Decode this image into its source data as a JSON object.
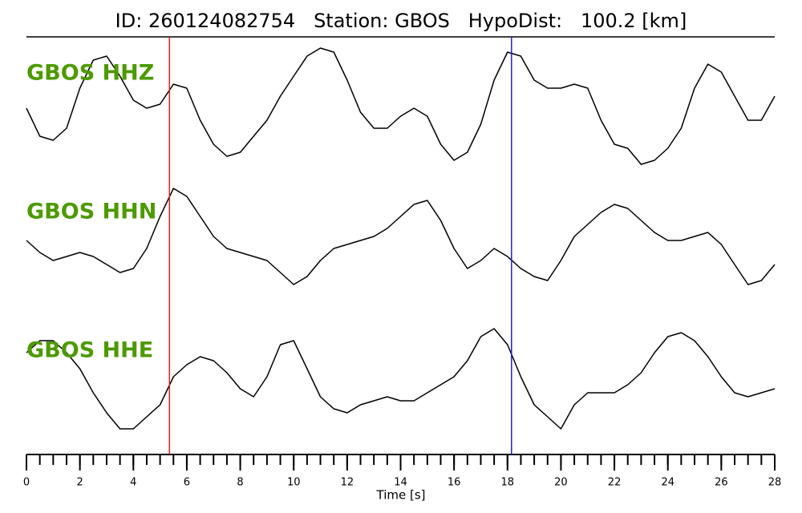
{
  "chart_data": {
    "type": "line",
    "title": "ID: 260124082754   Station: GBOS   HypoDist:   100.2 [km]",
    "xlabel": "Time [s]",
    "xlim": [
      0,
      28
    ],
    "xticks": [
      0,
      2,
      4,
      6,
      8,
      10,
      12,
      14,
      16,
      18,
      20,
      22,
      24,
      26,
      28
    ],
    "xminorticks": [
      0,
      0.5,
      1,
      1.5,
      2,
      2.5,
      3,
      3.5,
      4,
      4.5,
      5,
      5.5,
      6,
      6.5,
      7,
      7.5,
      8,
      8.5,
      9,
      9.5,
      10,
      10.5,
      11,
      11.5,
      12,
      12.5,
      13,
      13.5,
      14,
      14.5,
      15,
      15.5,
      16,
      16.5,
      17,
      17.5,
      18,
      18.5,
      19,
      19.5,
      20,
      20.5,
      21,
      21.5,
      22,
      22.5,
      23,
      23.5,
      24,
      24.5,
      25,
      25.5,
      26,
      26.5,
      27,
      27.5,
      28
    ],
    "label_color": "#4c9a00",
    "markers": [
      {
        "value": 5.35,
        "color": "#e02020"
      },
      {
        "value": 18.15,
        "color": "#2020e0"
      }
    ],
    "x": [
      0,
      0.5,
      1,
      1.5,
      2,
      2.5,
      3,
      3.5,
      4,
      4.5,
      5,
      5.5,
      6,
      6.5,
      7,
      7.5,
      8,
      8.5,
      9,
      9.5,
      10,
      10.5,
      11,
      11.5,
      12,
      12.5,
      13,
      13.5,
      14,
      14.5,
      15,
      15.5,
      16,
      16.5,
      17,
      17.5,
      18,
      18.5,
      19,
      19.5,
      20,
      20.5,
      21,
      21.5,
      22,
      22.5,
      23,
      23.5,
      24,
      24.5,
      25,
      25.5,
      26,
      26.5,
      27,
      27.5,
      28
    ],
    "series": [
      {
        "name": "GBOS HHZ",
        "color": "#000000",
        "ylim": [
          -80,
          80
        ],
        "values": [
          0,
          -35,
          -40,
          -25,
          25,
          60,
          65,
          40,
          10,
          0,
          5,
          30,
          25,
          -15,
          -45,
          -60,
          -55,
          -35,
          -15,
          15,
          40,
          65,
          75,
          70,
          35,
          -5,
          -25,
          -25,
          -10,
          0,
          -10,
          -45,
          -65,
          -55,
          -20,
          35,
          70,
          65,
          35,
          25,
          25,
          30,
          25,
          -15,
          -45,
          -50,
          -70,
          -65,
          -50,
          -25,
          25,
          55,
          45,
          15,
          -15,
          -15,
          15
        ]
      },
      {
        "name": "GBOS HHN",
        "color": "#000000",
        "ylim": [
          -80,
          80
        ],
        "values": [
          -5,
          -20,
          -30,
          -25,
          -20,
          -25,
          -35,
          -45,
          -40,
          -15,
          25,
          60,
          50,
          25,
          0,
          -15,
          -20,
          -25,
          -30,
          -45,
          -60,
          -50,
          -30,
          -15,
          -10,
          -5,
          0,
          10,
          25,
          40,
          45,
          20,
          -15,
          -40,
          -30,
          -15,
          -25,
          -40,
          -50,
          -55,
          -30,
          0,
          15,
          30,
          40,
          35,
          20,
          5,
          -5,
          -5,
          0,
          5,
          -10,
          -35,
          -60,
          -55,
          -35
        ]
      },
      {
        "name": "GBOS HHE",
        "color": "#000000",
        "ylim": [
          -80,
          80
        ],
        "values": [
          40,
          55,
          55,
          40,
          20,
          -10,
          -35,
          -55,
          -55,
          -40,
          -25,
          10,
          25,
          35,
          30,
          15,
          -5,
          -15,
          10,
          50,
          55,
          20,
          -15,
          -30,
          -35,
          -25,
          -20,
          -15,
          -20,
          -20,
          -10,
          0,
          10,
          30,
          60,
          70,
          50,
          10,
          -25,
          -40,
          -55,
          -25,
          -10,
          -10,
          -10,
          0,
          15,
          40,
          60,
          65,
          55,
          35,
          10,
          -10,
          -15,
          -10,
          -5
        ]
      }
    ]
  }
}
